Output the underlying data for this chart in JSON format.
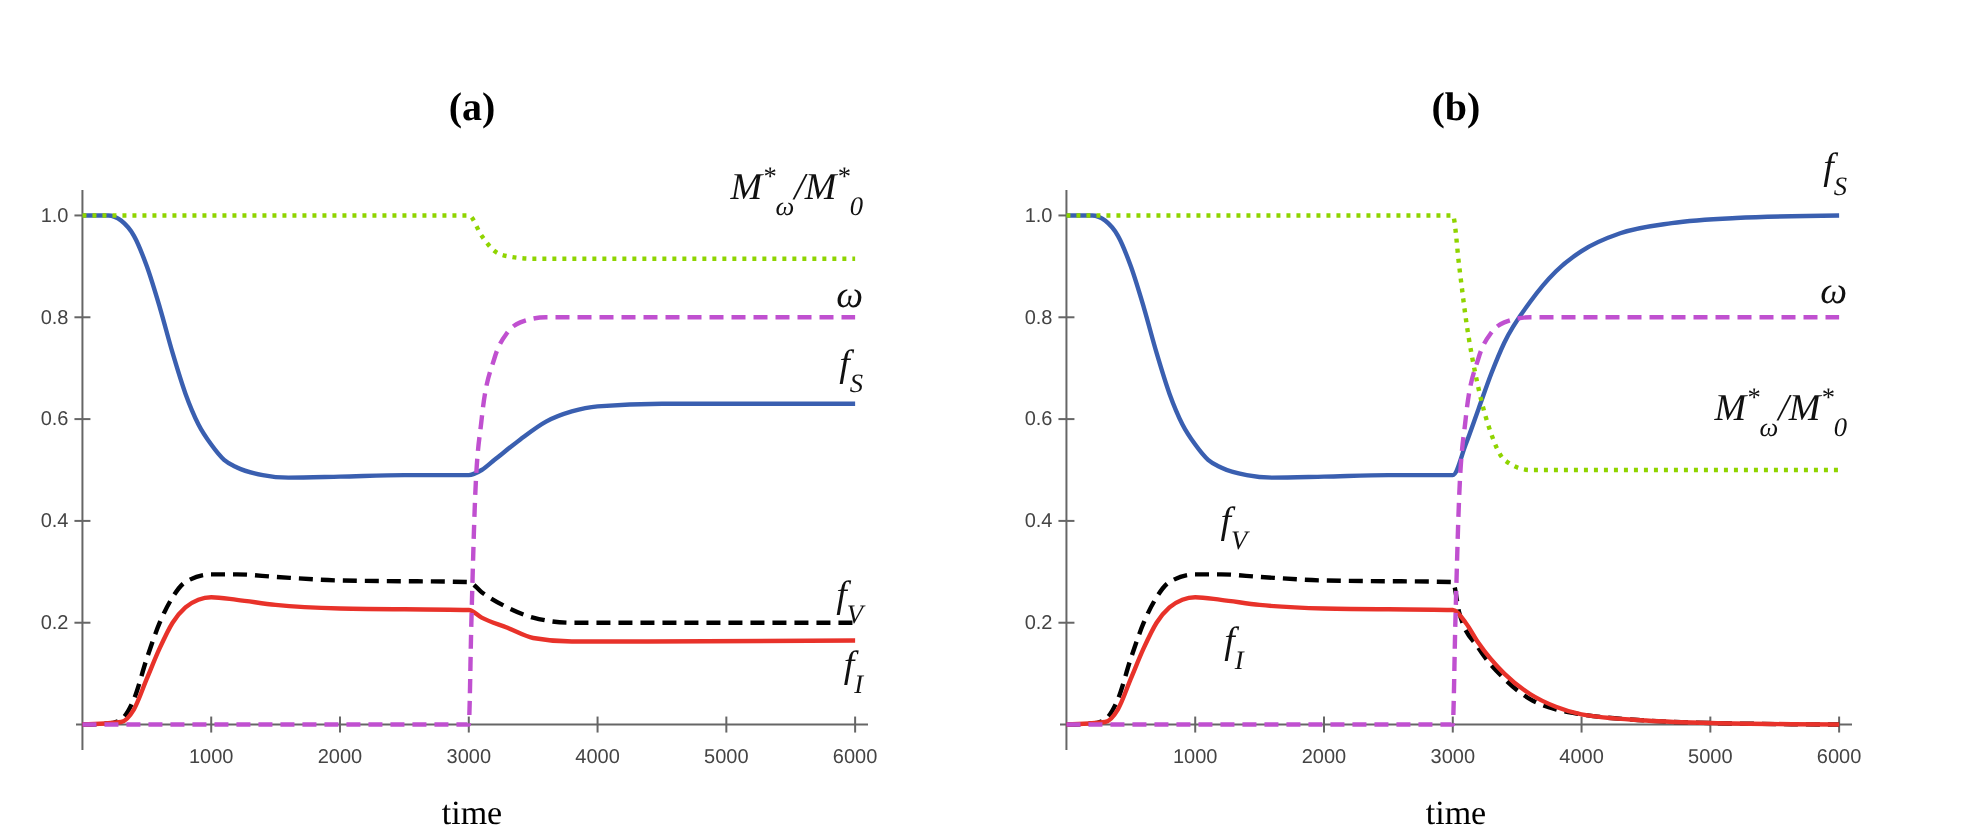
{
  "chart_data": [
    {
      "type": "line",
      "title": "(a)",
      "xlabel": "time",
      "xlim": [
        -50,
        6100
      ],
      "ylim": [
        -0.05,
        1.05
      ],
      "xticks": [
        1000,
        2000,
        3000,
        4000,
        5000,
        6000
      ],
      "yticks": [
        0.2,
        0.4,
        0.6,
        0.8,
        {
          "value": 1,
          "label": "1.0"
        }
      ],
      "grid": false,
      "series": [
        {
          "name": "f$_{S}$",
          "color": "#3a5fb0",
          "line_style": "solid",
          "x": [
            0,
            200,
            300,
            400,
            500,
            600,
            700,
            800,
            900,
            1000,
            1100,
            1200,
            1400,
            1600,
            2000,
            2500,
            3000,
            3100,
            3200,
            3400,
            3600,
            3800,
            4000,
            4500,
            6000
          ],
          "values": [
            1,
            1,
            0.99,
            0.96,
            0.9,
            0.82,
            0.73,
            0.65,
            0.59,
            0.55,
            0.52,
            0.505,
            0.49,
            0.485,
            0.487,
            0.49,
            0.49,
            0.5,
            0.52,
            0.56,
            0.595,
            0.615,
            0.625,
            0.63,
            0.63
          ]
        },
        {
          "name": "f$_{V}$",
          "color": "#000000",
          "line_style": "dashed",
          "x": [
            0,
            200,
            300,
            400,
            500,
            600,
            700,
            800,
            1000,
            1200,
            1500,
            2000,
            3000,
            3100,
            3300,
            3500,
            3800,
            6000
          ],
          "values": [
            0,
            0.002,
            0.01,
            0.05,
            0.13,
            0.2,
            0.25,
            0.28,
            0.295,
            0.295,
            0.29,
            0.283,
            0.28,
            0.26,
            0.23,
            0.21,
            0.2,
            0.2
          ]
        },
        {
          "name": "f$_{I}$",
          "color": "#e8322a",
          "line_style": "solid",
          "x": [
            0,
            300,
            400,
            500,
            600,
            700,
            800,
            900,
            1000,
            1200,
            1500,
            2000,
            3000,
            3100,
            3300,
            3500,
            3800,
            6000
          ],
          "values": [
            0,
            0.005,
            0.03,
            0.09,
            0.15,
            0.2,
            0.23,
            0.245,
            0.25,
            0.245,
            0.235,
            0.228,
            0.225,
            0.21,
            0.19,
            0.17,
            0.163,
            0.165
          ]
        },
        {
          "name": "ω",
          "color": "#c050d0",
          "line_style": "dashed",
          "x": [
            0,
            3000,
            3020,
            3050,
            3100,
            3200,
            3300,
            3400,
            3600,
            6000
          ],
          "values": [
            0,
            0,
            0.2,
            0.45,
            0.6,
            0.72,
            0.77,
            0.79,
            0.8,
            0.8
          ]
        },
        {
          "name": "M$^{*}$$_{ω}$/M$^{*}$$_{0}$",
          "color": "#8fd400",
          "line_style": "dotted",
          "x": [
            0,
            3000,
            3100,
            3200,
            3300,
            3500,
            6000
          ],
          "values": [
            1,
            1,
            0.96,
            0.93,
            0.92,
            0.915,
            0.915
          ]
        }
      ]
    },
    {
      "type": "line",
      "title": "(b)",
      "xlabel": "time",
      "xlim": [
        -50,
        6100
      ],
      "ylim": [
        -0.05,
        1.05
      ],
      "xticks": [
        1000,
        2000,
        3000,
        4000,
        5000,
        6000
      ],
      "yticks": [
        0.2,
        0.4,
        0.6,
        0.8,
        {
          "value": 1,
          "label": "1.0"
        }
      ],
      "grid": false,
      "series": [
        {
          "name": "f$_{S}$",
          "color": "#3a5fb0",
          "line_style": "solid",
          "x": [
            0,
            200,
            300,
            400,
            500,
            600,
            700,
            800,
            900,
            1000,
            1100,
            1200,
            1400,
            1600,
            2000,
            2500,
            3000,
            3100,
            3200,
            3300,
            3400,
            3600,
            3800,
            4000,
            4300,
            4700,
            5200,
            6000
          ],
          "values": [
            1,
            1,
            0.99,
            0.96,
            0.9,
            0.82,
            0.73,
            0.65,
            0.59,
            0.55,
            0.52,
            0.505,
            0.49,
            0.485,
            0.487,
            0.49,
            0.49,
            0.55,
            0.62,
            0.69,
            0.75,
            0.83,
            0.89,
            0.93,
            0.965,
            0.985,
            0.995,
            1
          ]
        },
        {
          "name": "f$_{V}$",
          "color": "#000000",
          "line_style": "dashed",
          "x": [
            0,
            200,
            300,
            400,
            500,
            600,
            700,
            800,
            1000,
            1200,
            1500,
            2000,
            3000,
            3050,
            3200,
            3400,
            3600,
            3800,
            4000,
            4500,
            5000,
            6000
          ],
          "values": [
            0,
            0.002,
            0.01,
            0.05,
            0.13,
            0.2,
            0.25,
            0.28,
            0.295,
            0.295,
            0.29,
            0.283,
            0.28,
            0.22,
            0.15,
            0.09,
            0.05,
            0.03,
            0.02,
            0.008,
            0.003,
            0
          ]
        },
        {
          "name": "f$_{I}$",
          "color": "#e8322a",
          "line_style": "solid",
          "x": [
            0,
            300,
            400,
            500,
            600,
            700,
            800,
            900,
            1000,
            1200,
            1500,
            2000,
            3000,
            3100,
            3200,
            3400,
            3600,
            3800,
            4000,
            4500,
            5000,
            6000
          ],
          "values": [
            0,
            0.005,
            0.03,
            0.09,
            0.15,
            0.2,
            0.23,
            0.245,
            0.25,
            0.245,
            0.235,
            0.228,
            0.225,
            0.2,
            0.16,
            0.1,
            0.06,
            0.035,
            0.02,
            0.008,
            0.003,
            0
          ]
        },
        {
          "name": "ω",
          "color": "#c050d0",
          "line_style": "dashed",
          "x": [
            0,
            3000,
            3020,
            3050,
            3100,
            3200,
            3300,
            3400,
            3600,
            6000
          ],
          "values": [
            0,
            0,
            0.2,
            0.45,
            0.6,
            0.72,
            0.77,
            0.79,
            0.8,
            0.8
          ]
        },
        {
          "name": "M$^{*}$$_{ω}$/M$^{*}$$_{0}$",
          "color": "#8fd400",
          "line_style": "dotted",
          "x": [
            0,
            3000,
            3050,
            3100,
            3200,
            3300,
            3400,
            3600,
            6000
          ],
          "values": [
            1,
            1,
            0.9,
            0.8,
            0.66,
            0.57,
            0.52,
            0.5,
            0.5
          ]
        }
      ]
    }
  ]
}
